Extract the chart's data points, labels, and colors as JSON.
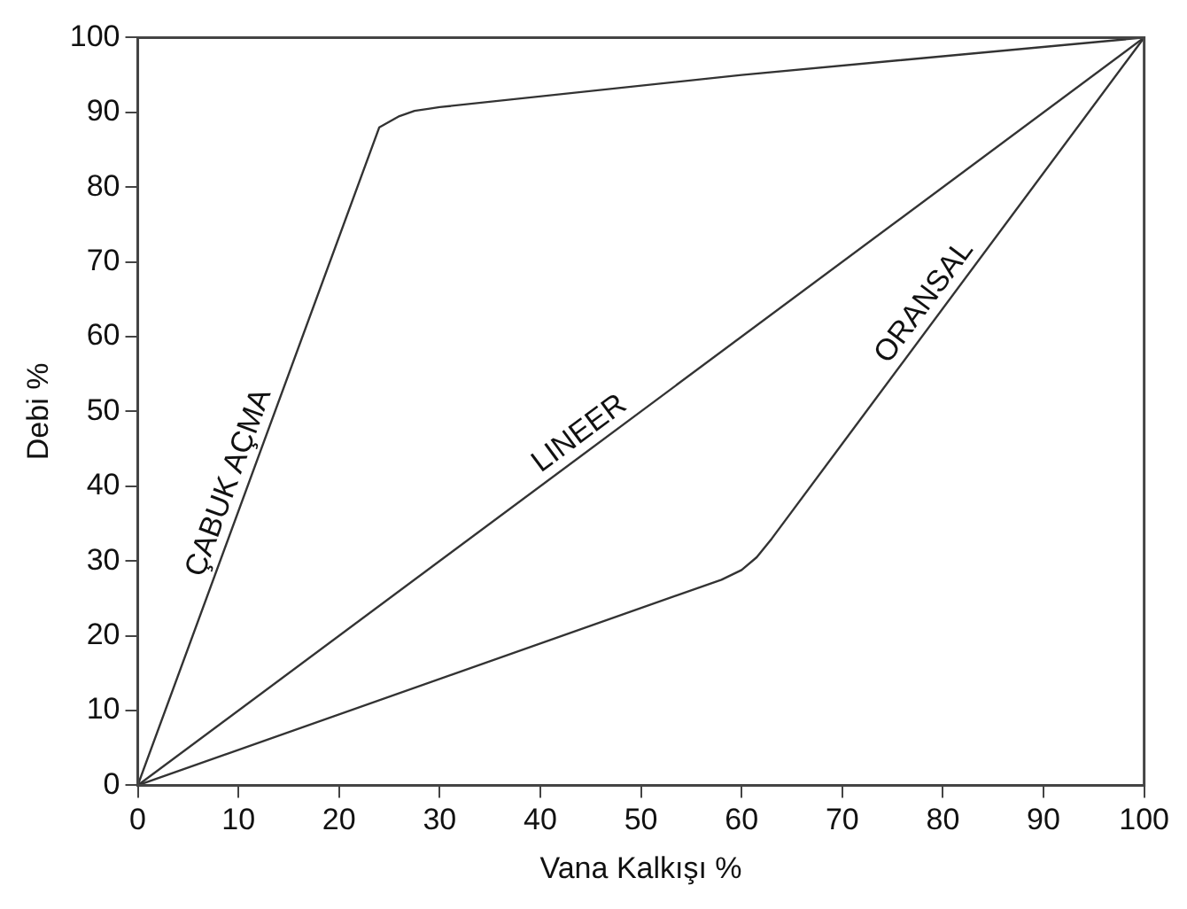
{
  "chart_data": {
    "type": "line",
    "xlabel": "Vana Kalkışı %",
    "ylabel": "Debi %",
    "xlim": [
      0,
      100
    ],
    "xticks": [
      0,
      10,
      20,
      30,
      40,
      50,
      60,
      70,
      80,
      90,
      100
    ],
    "ylim": [
      0,
      100
    ],
    "yticks": [
      0,
      10,
      20,
      30,
      40,
      50,
      60,
      70,
      80,
      90,
      100
    ],
    "grid": false,
    "legend": false,
    "marker": "none",
    "line_style": "solid",
    "series": [
      {
        "name": "ÇABUK AÇMA",
        "color": "#333333",
        "x": [
          0,
          24,
          26,
          27.5,
          29,
          30,
          60,
          100
        ],
        "values": [
          0,
          88,
          89.5,
          90.2,
          90.5,
          90.7,
          95,
          100
        ]
      },
      {
        "name": "LINEER",
        "color": "#333333",
        "x": [
          0,
          100
        ],
        "values": [
          0,
          100
        ]
      },
      {
        "name": "ORANSAL",
        "color": "#333333",
        "x": [
          0,
          58,
          60,
          61.5,
          63,
          100
        ],
        "values": [
          0,
          27.5,
          28.8,
          30.5,
          33,
          100
        ]
      }
    ]
  }
}
